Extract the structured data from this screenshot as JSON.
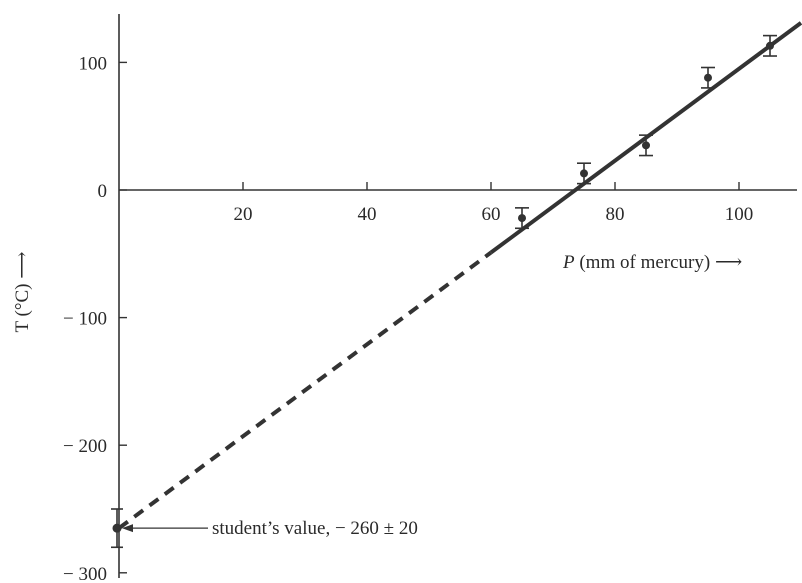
{
  "chart_data": {
    "type": "scatter",
    "xlabel": {
      "var": "P",
      "rest": " (mm of mercury) ⟶"
    },
    "ylabel": "T (°C) ⟶",
    "xlim": [
      0,
      110
    ],
    "ylim": [
      -300,
      140
    ],
    "x_ticks": [
      20,
      40,
      60,
      80,
      100
    ],
    "y_ticks": [
      100,
      0,
      -100,
      -200,
      -300
    ],
    "y_tick_labels": [
      "100",
      "0",
      "− 100",
      "− 200",
      "− 300"
    ],
    "points": [
      {
        "x": 65,
        "y": -22,
        "err": 8
      },
      {
        "x": 75,
        "y": 13,
        "err": 8
      },
      {
        "x": 85,
        "y": 35,
        "err": 8
      },
      {
        "x": 95,
        "y": 88,
        "err": 8
      },
      {
        "x": 105,
        "y": 113,
        "err": 8
      }
    ],
    "fit_line": {
      "solid_x": [
        60,
        110
      ],
      "dashed_x": [
        0,
        60
      ],
      "intercept": -265,
      "slope": 3.6
    },
    "extrapolated_point": {
      "x": 0,
      "y": -265,
      "err": 15
    },
    "annotation": "student’s value, − 260 ± 20"
  }
}
